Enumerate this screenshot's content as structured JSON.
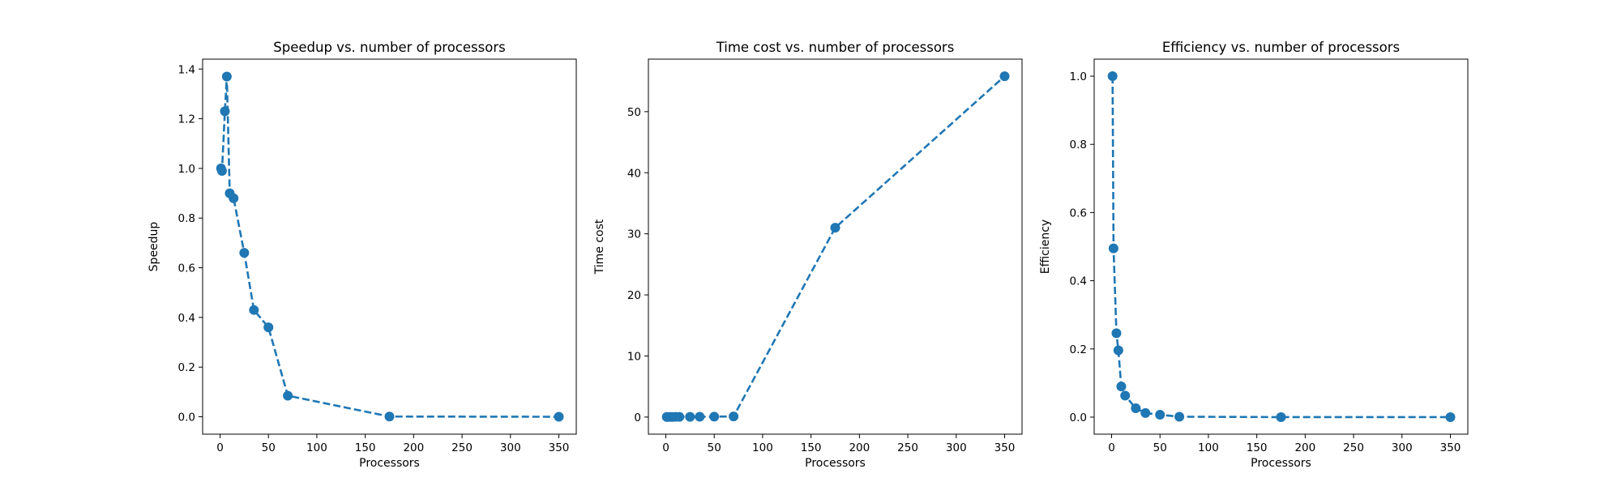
{
  "figure": {
    "background": "#ffffff",
    "line_color": "#1f77b4",
    "line_style": "dashed",
    "marker": "circle"
  },
  "chart_data": [
    {
      "type": "line",
      "title": "Speedup vs. number of processors",
      "xlabel": "Processors",
      "ylabel": "Speedup",
      "xlim": [
        -18,
        368
      ],
      "ylim": [
        -0.07,
        1.44
      ],
      "xticks": [
        0,
        50,
        100,
        150,
        200,
        250,
        300,
        350
      ],
      "yticks": [
        0.0,
        0.2,
        0.4,
        0.6,
        0.8,
        1.0,
        1.2,
        1.4
      ],
      "ytick_labels": [
        "0.0",
        "0.2",
        "0.4",
        "0.6",
        "0.8",
        "1.0",
        "1.2",
        "1.4"
      ],
      "grid": false,
      "series": [
        {
          "x": [
            1,
            2,
            5,
            7,
            10,
            14,
            25,
            35,
            50,
            70,
            175,
            350
          ],
          "y": [
            1.0,
            0.99,
            1.23,
            1.37,
            0.9,
            0.88,
            0.66,
            0.43,
            0.36,
            0.085,
            0.001,
            0.0
          ]
        }
      ]
    },
    {
      "type": "line",
      "title": "Time cost vs. number of processors",
      "xlabel": "Processors",
      "ylabel": "Time cost",
      "xlim": [
        -18,
        368
      ],
      "ylim": [
        -2.8,
        58.6
      ],
      "xticks": [
        0,
        50,
        100,
        150,
        200,
        250,
        300,
        350
      ],
      "yticks": [
        0,
        10,
        20,
        30,
        40,
        50
      ],
      "ytick_labels": [
        "0",
        "10",
        "20",
        "30",
        "40",
        "50"
      ],
      "grid": false,
      "series": [
        {
          "x": [
            1,
            2,
            5,
            7,
            10,
            14,
            25,
            35,
            50,
            70,
            175,
            350
          ],
          "y": [
            0.02,
            0.02,
            0.02,
            0.02,
            0.03,
            0.03,
            0.04,
            0.05,
            0.06,
            0.1,
            31.0,
            55.8
          ]
        }
      ]
    },
    {
      "type": "line",
      "title": "Efficiency vs. number of processors",
      "xlabel": "Processors",
      "ylabel": "Efficiency",
      "xlim": [
        -18,
        368
      ],
      "ylim": [
        -0.05,
        1.05
      ],
      "xticks": [
        0,
        50,
        100,
        150,
        200,
        250,
        300,
        350
      ],
      "yticks": [
        0.0,
        0.2,
        0.4,
        0.6,
        0.8,
        1.0
      ],
      "ytick_labels": [
        "0.0",
        "0.2",
        "0.4",
        "0.6",
        "0.8",
        "1.0"
      ],
      "grid": false,
      "series": [
        {
          "x": [
            1,
            2,
            5,
            7,
            10,
            14,
            25,
            35,
            50,
            70,
            175,
            350
          ],
          "y": [
            1.0,
            0.495,
            0.246,
            0.196,
            0.09,
            0.063,
            0.026,
            0.012,
            0.007,
            0.0012,
            0.0,
            0.0
          ]
        }
      ]
    }
  ]
}
